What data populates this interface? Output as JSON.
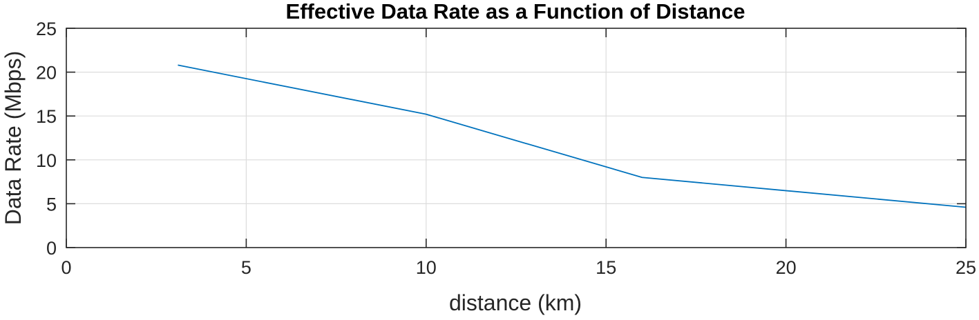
{
  "colors": {
    "series": "#0072bd",
    "grid": "#dcdcdc",
    "axis": "#262626"
  },
  "chart_data": {
    "type": "line",
    "title": "Effective Data Rate as a Function of Distance",
    "xlabel": "distance (km)",
    "ylabel": "Data Rate (Mbps)",
    "xlim": [
      0,
      25
    ],
    "ylim": [
      0,
      25
    ],
    "xticks": [
      0,
      5,
      10,
      15,
      20,
      25
    ],
    "yticks": [
      0,
      5,
      10,
      15,
      20,
      25
    ],
    "grid": true,
    "series": [
      {
        "x": [
          3.1,
          10,
          16,
          25
        ],
        "y": [
          20.8,
          15.2,
          8.0,
          4.6
        ]
      }
    ]
  }
}
